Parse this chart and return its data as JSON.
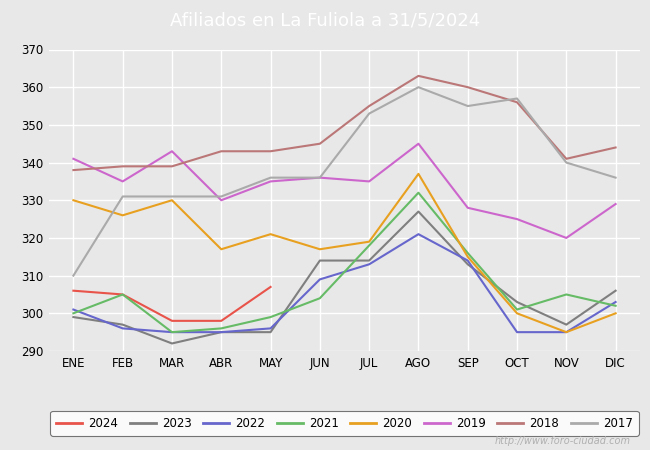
{
  "title": "Afiliados en La Fuliola a 31/5/2024",
  "title_bg_color": "#4a7cc7",
  "title_text_color": "#ffffff",
  "ylim": [
    290,
    370
  ],
  "yticks": [
    290,
    300,
    310,
    320,
    330,
    340,
    350,
    360,
    370
  ],
  "months": [
    "ENE",
    "FEB",
    "MAR",
    "ABR",
    "MAY",
    "JUN",
    "JUL",
    "AGO",
    "SEP",
    "OCT",
    "NOV",
    "DIC"
  ],
  "watermark": "http://www.foro-ciudad.com",
  "series": {
    "2024": {
      "color": "#e8534a",
      "data": [
        306,
        305,
        298,
        298,
        307,
        null,
        null,
        null,
        null,
        null,
        null,
        null
      ]
    },
    "2023": {
      "color": "#7f7f7f",
      "data": [
        299,
        297,
        292,
        295,
        295,
        314,
        314,
        327,
        313,
        303,
        297,
        306
      ]
    },
    "2022": {
      "color": "#6666cc",
      "data": [
        301,
        296,
        295,
        295,
        296,
        309,
        313,
        321,
        314,
        295,
        295,
        303
      ]
    },
    "2021": {
      "color": "#66bb66",
      "data": [
        300,
        305,
        295,
        296,
        299,
        304,
        318,
        332,
        316,
        301,
        305,
        302
      ]
    },
    "2020": {
      "color": "#e8a020",
      "data": [
        330,
        326,
        330,
        317,
        321,
        317,
        319,
        337,
        315,
        300,
        295,
        300
      ]
    },
    "2019": {
      "color": "#cc66cc",
      "data": [
        341,
        335,
        343,
        330,
        335,
        336,
        335,
        345,
        328,
        325,
        320,
        329
      ]
    },
    "2018": {
      "color": "#bb7777",
      "data": [
        338,
        339,
        339,
        343,
        343,
        345,
        355,
        363,
        360,
        356,
        341,
        344
      ]
    },
    "2017": {
      "color": "#aaaaaa",
      "data": [
        310,
        331,
        331,
        331,
        336,
        336,
        353,
        360,
        355,
        357,
        340,
        336
      ]
    }
  },
  "legend_order": [
    "2024",
    "2023",
    "2022",
    "2021",
    "2020",
    "2019",
    "2018",
    "2017"
  ],
  "background_color": "#e8e8e8",
  "plot_bg_color": "#e8e8e8",
  "grid_color": "#ffffff",
  "watermark_color": "#b0b0b0"
}
